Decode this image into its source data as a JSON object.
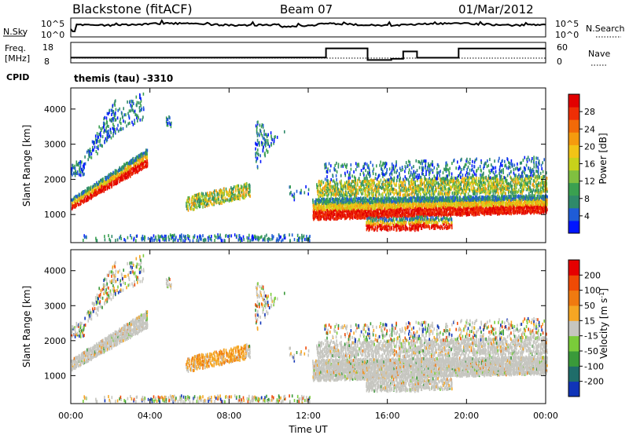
{
  "header": {
    "station": "Blackstone (fitACF)",
    "beam": "Beam 07",
    "date": "01/Mar/2012"
  },
  "noise_panel": {
    "left_label": "N.Sky",
    "right_label": "N.Search",
    "ticks": [
      "10^5",
      "10^0"
    ],
    "right_ticks": [
      "10^5",
      "10^0"
    ]
  },
  "freq_panel": {
    "left_label_1": "Freq.",
    "left_label_2": "[MHz]",
    "left_ticks": [
      "18",
      "8"
    ],
    "right_label": "Nave",
    "right_ticks": [
      "60",
      "0"
    ]
  },
  "cpid": {
    "label": "CPID",
    "value": "themis (tau) -3310"
  },
  "x_axis": {
    "label": "Time UT",
    "ticks": [
      "00:00",
      "04:00",
      "08:00",
      "12:00",
      "16:00",
      "20:00",
      "00:00"
    ]
  },
  "chart_data": [
    {
      "type": "heatmap",
      "name": "power",
      "ylabel": "Slant Range [km]",
      "yticks": [
        "1000",
        "2000",
        "3000",
        "4000"
      ],
      "ylim": [
        200,
        4600
      ],
      "xlim_hours": [
        0,
        24
      ],
      "colorbar": {
        "label": "Power [dB]",
        "ticks": [
          "4",
          "8",
          "12",
          "16",
          "20",
          "24",
          "28"
        ],
        "range": [
          0,
          32
        ],
        "colors": [
          "#0015ff",
          "#1f5cd6",
          "#2f8a6a",
          "#3aa050",
          "#80c040",
          "#c8d21a",
          "#f2c416",
          "#f59b0e",
          "#f26a08",
          "#ee2e05",
          "#e20000"
        ]
      }
    },
    {
      "type": "heatmap",
      "name": "velocity",
      "ylabel": "Slant Range [km]",
      "yticks": [
        "1000",
        "2000",
        "3000",
        "4000"
      ],
      "ylim": [
        200,
        4600
      ],
      "xlim_hours": [
        0,
        24
      ],
      "colorbar": {
        "label": "Velocity [m s-1]",
        "ticks": [
          "200",
          "100",
          "50",
          "15",
          "-15",
          "-50",
          "-100",
          "-200"
        ],
        "colors": [
          "#1034b8",
          "#1f6d6a",
          "#3a9a3a",
          "#7acc3a",
          "#c6c6c0",
          "#f5a623",
          "#f07a10",
          "#ef4a05",
          "#e60000"
        ]
      }
    }
  ]
}
